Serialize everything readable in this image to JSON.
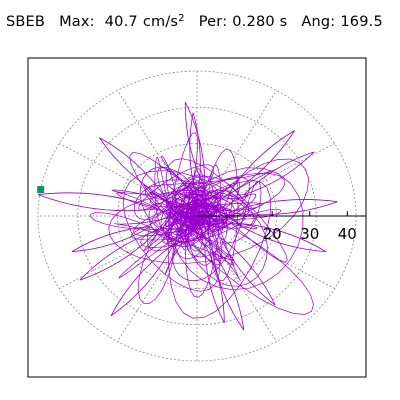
{
  "header": {
    "station": "SBEB",
    "max_label": "Max:",
    "max_value": "40.7",
    "max_unit": "cm/s",
    "max_unit_exp": "2",
    "period_label": "Per:",
    "period_value": "0.280 s",
    "angle_label": "Ang:",
    "angle_value": "169.5"
  },
  "chart_data": {
    "type": "scatter",
    "plot_kind": "polar particle-motion trace",
    "title": "",
    "xlabel": "",
    "ylabel": "",
    "radial_range": [
      0,
      40.7
    ],
    "radial_ticks": [
      20,
      30,
      40
    ],
    "radial_tick_labels": [
      "20",
      "30",
      "40"
    ],
    "angular_grid_deg": [
      0,
      30,
      60,
      90,
      120,
      150,
      180,
      210,
      240,
      270,
      300,
      330
    ],
    "grid": true,
    "max_amplitude": 40.7,
    "max_angle_deg": 169.5,
    "trace_color": "#9900cc",
    "marker_color": "#009966",
    "grid_color": "#888888",
    "peak_marker": {
      "r": 40.7,
      "angle_deg": 169.5
    }
  }
}
